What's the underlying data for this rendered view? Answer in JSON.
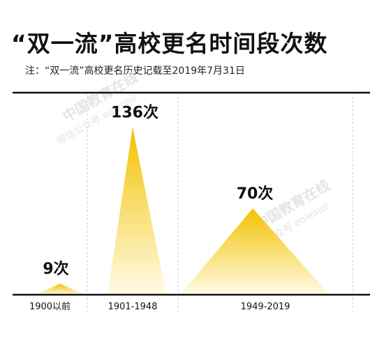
{
  "title": "“双一流”高校更名时间段次数",
  "note": "注：“双一流”高校更名历史记载至2019年7月31日",
  "watermarks": [
    "中国教育在线",
    "微信公众号 eoleolol"
  ],
  "colors": {
    "peak": "#f2c200",
    "fade": "#fffbe6",
    "axis": "#111111"
  },
  "chart_data": {
    "type": "area",
    "categories": [
      "1900以前",
      "1901-1948",
      "1949-2019"
    ],
    "values": [
      9,
      136,
      70
    ],
    "data_labels": [
      "9次",
      "136次",
      "70次"
    ],
    "title": "“双一流”高校更名时间段次数",
    "xlabel": "",
    "ylabel": "",
    "grid": true
  }
}
